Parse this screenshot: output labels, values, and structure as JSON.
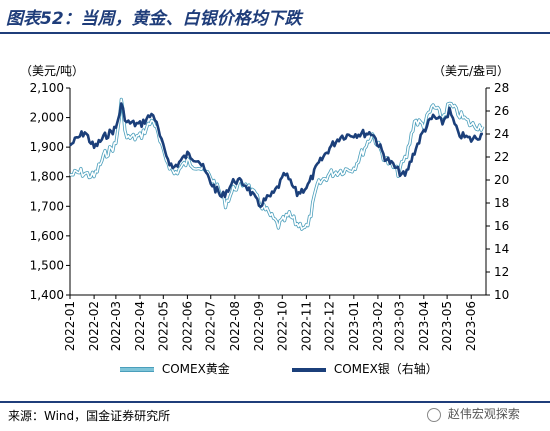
{
  "header": {
    "title": "图表52：当周，黄金、白银价格均下跌"
  },
  "footer": {
    "source": "来源：Wind，国金证券研究所",
    "watermark": "赵伟宏观探索",
    "watermark_icon": "wechat-icon"
  },
  "colors": {
    "gold": "#7ec4d8",
    "gold_edge": "#4a9ebb",
    "silver": "#1b3f7a",
    "title": "#1f3d7a"
  },
  "chart_data": {
    "type": "line",
    "title": "",
    "y_left_unit": "（美元/吨）",
    "y_right_unit": "（美元/盎司）",
    "y_left_range": [
      1400,
      2100
    ],
    "y_left_ticks": [
      "1,400",
      "1,500",
      "1,600",
      "1,700",
      "1,800",
      "1,900",
      "2,000",
      "2,100"
    ],
    "y_right_range": [
      10,
      28
    ],
    "y_right_ticks": [
      "10",
      "12",
      "14",
      "16",
      "18",
      "20",
      "22",
      "24",
      "26",
      "28"
    ],
    "x_ticks": [
      "2022-01",
      "2022-02",
      "2022-03",
      "2022-04",
      "2022-05",
      "2022-06",
      "2022-07",
      "2022-08",
      "2022-09",
      "2022-10",
      "2022-11",
      "2022-12",
      "2023-01",
      "2023-02",
      "2023-03",
      "2023-04",
      "2023-05",
      "2023-06"
    ],
    "x_range": [
      "2022-01",
      "2023-06-20"
    ],
    "grid": false,
    "legend": "bottom",
    "series": [
      {
        "name": "COMEX黄金",
        "axis": "left",
        "x": [
          "2022-01-01",
          "2022-01-15",
          "2022-02-01",
          "2022-02-15",
          "2022-03-01",
          "2022-03-08",
          "2022-03-15",
          "2022-04-01",
          "2022-04-18",
          "2022-05-01",
          "2022-05-15",
          "2022-06-01",
          "2022-06-15",
          "2022-07-01",
          "2022-07-20",
          "2022-08-01",
          "2022-08-15",
          "2022-09-01",
          "2022-09-26",
          "2022-10-10",
          "2022-10-20",
          "2022-11-03",
          "2022-11-15",
          "2022-12-01",
          "2022-12-15",
          "2023-01-01",
          "2023-01-25",
          "2023-02-10",
          "2023-02-27",
          "2023-03-10",
          "2023-03-20",
          "2023-04-01",
          "2023-04-13",
          "2023-04-25",
          "2023-05-04",
          "2023-05-15",
          "2023-06-01",
          "2023-06-16"
        ],
        "values": [
          1805,
          1815,
          1800,
          1875,
          1910,
          2055,
          1930,
          1935,
          1995,
          1880,
          1810,
          1850,
          1835,
          1800,
          1710,
          1765,
          1780,
          1715,
          1635,
          1670,
          1640,
          1630,
          1770,
          1810,
          1820,
          1830,
          1945,
          1860,
          1815,
          1870,
          1990,
          1975,
          2040,
          2000,
          2045,
          2015,
          1975,
          1970
        ]
      },
      {
        "name": "COMEX银（右轴）",
        "axis": "right",
        "x": [
          "2022-01-01",
          "2022-01-20",
          "2022-02-01",
          "2022-02-15",
          "2022-03-01",
          "2022-03-08",
          "2022-03-15",
          "2022-04-01",
          "2022-04-18",
          "2022-05-01",
          "2022-05-13",
          "2022-06-01",
          "2022-06-15",
          "2022-07-01",
          "2022-07-15",
          "2022-08-01",
          "2022-08-15",
          "2022-09-01",
          "2022-09-20",
          "2022-10-05",
          "2022-10-20",
          "2022-11-03",
          "2022-11-15",
          "2022-12-01",
          "2022-12-15",
          "2023-01-01",
          "2023-01-25",
          "2023-02-10",
          "2023-02-27",
          "2023-03-08",
          "2023-03-20",
          "2023-04-01",
          "2023-04-13",
          "2023-04-25",
          "2023-05-04",
          "2023-05-15",
          "2023-06-01",
          "2023-06-16"
        ],
        "values": [
          23.0,
          24.2,
          22.8,
          23.8,
          24.5,
          26.5,
          25.0,
          24.8,
          25.8,
          22.8,
          21.0,
          22.2,
          21.8,
          19.8,
          18.5,
          20.0,
          19.6,
          17.8,
          18.8,
          20.5,
          18.8,
          19.5,
          21.2,
          22.8,
          23.8,
          24.0,
          24.1,
          22.0,
          20.8,
          20.3,
          22.5,
          24.3,
          25.5,
          25.0,
          26.0,
          24.0,
          23.5,
          24.0
        ]
      }
    ]
  }
}
